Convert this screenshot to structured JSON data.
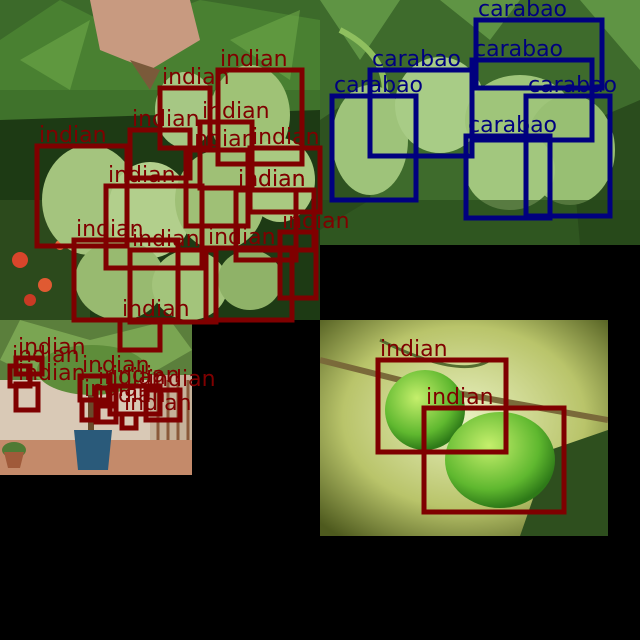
{
  "image": {
    "kind": "detection-mosaic",
    "background": "#000000"
  },
  "classes": {
    "indian": {
      "label": "indian",
      "color": "#7f0000"
    },
    "carabao": {
      "label": "carabao",
      "color": "#00007f"
    }
  },
  "tiles": [
    {
      "id": "tile-top-left",
      "subject": "hand holding a cluster of green mangoes"
    },
    {
      "id": "tile-top-right",
      "subject": "green mangoes hanging among leaves"
    },
    {
      "id": "tile-bottom-left",
      "subject": "potted mango sapling on a patio"
    },
    {
      "id": "tile-bottom-right",
      "subject": "two green mangoes on a branch"
    }
  ],
  "detections": [
    {
      "cls": "indian",
      "label": "indian"
    },
    {
      "cls": "indian",
      "label": "indian"
    },
    {
      "cls": "indian",
      "label": "indian"
    },
    {
      "cls": "indian",
      "label": "indian"
    },
    {
      "cls": "indian",
      "label": "indian"
    },
    {
      "cls": "indian",
      "label": "indian"
    },
    {
      "cls": "indian",
      "label": "indian"
    },
    {
      "cls": "indian",
      "label": "indian"
    },
    {
      "cls": "indian",
      "label": "indian"
    },
    {
      "cls": "indian",
      "label": "indian"
    },
    {
      "cls": "indian",
      "label": "indian"
    },
    {
      "cls": "indian",
      "label": "indian"
    },
    {
      "cls": "indian",
      "label": "indian"
    },
    {
      "cls": "indian",
      "label": "indian"
    },
    {
      "cls": "indian",
      "label": "indian"
    },
    {
      "cls": "carabao",
      "label": "carabao"
    },
    {
      "cls": "carabao",
      "label": "carabao"
    },
    {
      "cls": "carabao",
      "label": "carabao"
    },
    {
      "cls": "carabao",
      "label": "carabao"
    },
    {
      "cls": "carabao",
      "label": "carabao"
    },
    {
      "cls": "carabao",
      "label": "carabao"
    },
    {
      "cls": "indian",
      "label": "indian"
    },
    {
      "cls": "indian",
      "label": "indian"
    },
    {
      "cls": "indian",
      "label": "indian"
    },
    {
      "cls": "indian",
      "label": "indian"
    },
    {
      "cls": "indian",
      "label": "indian"
    },
    {
      "cls": "indian",
      "label": "indian"
    },
    {
      "cls": "indian",
      "label": "indian"
    },
    {
      "cls": "indian",
      "label": "indian"
    },
    {
      "cls": "indian",
      "label": "indian"
    },
    {
      "cls": "indian",
      "label": "indian"
    },
    {
      "cls": "indian",
      "label": "indian"
    },
    {
      "cls": "indian",
      "label": "indian"
    }
  ]
}
